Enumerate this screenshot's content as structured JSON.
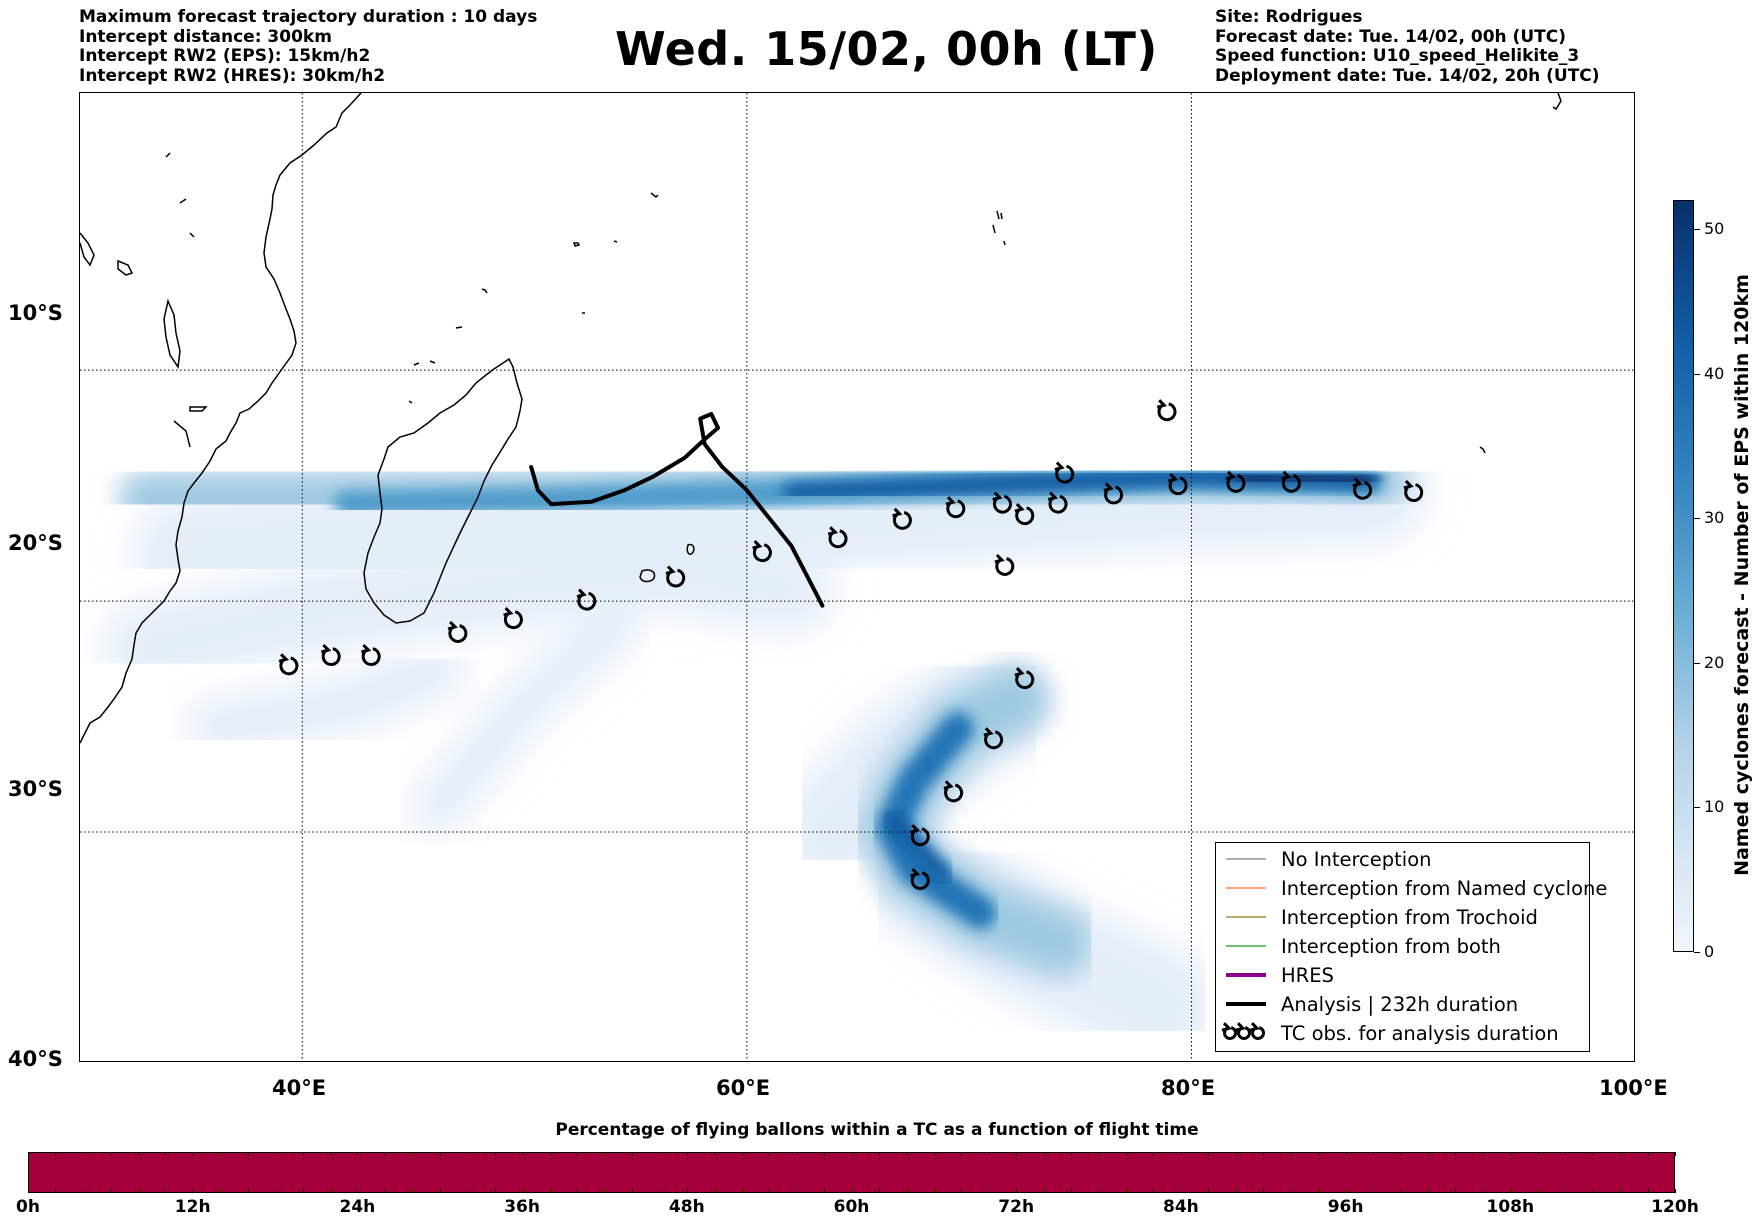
{
  "header": {
    "left_lines": [
      "Maximum forecast trajectory duration : 10 days",
      "Intercept distance: 300km",
      "Intercept RW2 (EPS):  15km/h2",
      "Intercept RW2 (HRES): 30km/h2"
    ],
    "title": "Wed. 15/02, 00h (LT)",
    "right_lines": [
      "Site: Rodrigues",
      "Forecast date: Tue. 14/02, 00h (UTC)",
      "Speed function: U10_speed_Helikite_3",
      "Deployment date: Tue. 14/02, 20h (UTC)"
    ]
  },
  "map": {
    "lon_range": [
      30,
      100
    ],
    "lat_range": [
      -40,
      2
    ],
    "x_ticks": [
      "40°E",
      "60°E",
      "80°E",
      "100°E"
    ],
    "x_tick_values": [
      40,
      60,
      80,
      100
    ],
    "y_ticks": [
      "10°S",
      "20°S",
      "30°S",
      "40°S"
    ],
    "y_tick_values": [
      -10,
      -20,
      -30,
      -40
    ],
    "grid": "dotted",
    "analysis_track": [
      [
        50.3,
        -14.2
      ],
      [
        50.6,
        -15.2
      ],
      [
        51.2,
        -15.8
      ],
      [
        53.0,
        -15.7
      ],
      [
        54.5,
        -15.2
      ],
      [
        55.8,
        -14.6
      ],
      [
        57.2,
        -13.8
      ],
      [
        58.1,
        -13.0
      ],
      [
        58.7,
        -12.5
      ],
      [
        58.4,
        -11.9
      ],
      [
        57.9,
        -12.1
      ],
      [
        58.1,
        -13.2
      ],
      [
        58.9,
        -14.2
      ],
      [
        60.0,
        -15.2
      ],
      [
        61.0,
        -16.4
      ],
      [
        62.0,
        -17.6
      ],
      [
        62.7,
        -18.9
      ],
      [
        63.4,
        -20.2
      ]
    ],
    "tc_obs": [
      [
        39.4,
        -22.8
      ],
      [
        41.3,
        -22.4
      ],
      [
        43.1,
        -22.4
      ],
      [
        47.0,
        -21.4
      ],
      [
        49.5,
        -20.8
      ],
      [
        52.8,
        -20.0
      ],
      [
        56.8,
        -19.0
      ],
      [
        60.7,
        -17.9
      ],
      [
        64.1,
        -17.3
      ],
      [
        67.0,
        -16.5
      ],
      [
        69.4,
        -16.0
      ],
      [
        71.5,
        -15.8
      ],
      [
        72.5,
        -16.3
      ],
      [
        74.0,
        -15.8
      ],
      [
        74.3,
        -14.5
      ],
      [
        76.5,
        -15.4
      ],
      [
        79.4,
        -15.0
      ],
      [
        82.0,
        -14.9
      ],
      [
        84.5,
        -14.9
      ],
      [
        87.7,
        -15.2
      ],
      [
        90.0,
        -15.3
      ],
      [
        78.9,
        -11.8
      ],
      [
        71.6,
        -18.5
      ],
      [
        72.5,
        -23.4
      ],
      [
        71.1,
        -26.0
      ],
      [
        69.3,
        -28.3
      ],
      [
        67.8,
        -30.2
      ],
      [
        67.8,
        -32.1
      ]
    ],
    "density_colors": [
      "#e4eef9",
      "#cadef0",
      "#9ecae1",
      "#4f9bcb",
      "#2474b6",
      "#0b5aa2",
      "#08306b"
    ]
  },
  "legend": {
    "items": [
      {
        "label": "No Interception",
        "color": "#808080",
        "style": "thin"
      },
      {
        "label": "Interception from Named cyclone",
        "color": "#ff6c1a",
        "style": "thin"
      },
      {
        "label": "Interception from Trochoid",
        "color": "#8e7a16",
        "style": "thin"
      },
      {
        "label": "Interception from both",
        "color": "#1a9a1a",
        "style": "thin"
      },
      {
        "label": "HRES",
        "color": "#8b008b",
        "style": "thick"
      },
      {
        "label": "Analysis | 232h duration",
        "color": "#000000",
        "style": "thick"
      },
      {
        "label": "TC obs. for analysis duration",
        "color": "#000000",
        "style": "symbols"
      }
    ]
  },
  "colorbar": {
    "title": "Named cyclones forecast - Number of EPS within 120km",
    "ticks": [
      "0",
      "10",
      "20",
      "30",
      "40",
      "50"
    ],
    "tick_values": [
      0,
      10,
      20,
      30,
      40,
      50
    ],
    "max": 52
  },
  "percentage_bar": {
    "title": "Percentage of flying ballons within a TC as a function of flight time",
    "color": "#a5003c",
    "ticks": [
      "0h",
      "12h",
      "24h",
      "36h",
      "48h",
      "60h",
      "72h",
      "84h",
      "96h",
      "108h",
      "120h"
    ],
    "tick_hours": [
      0,
      12,
      24,
      36,
      48,
      60,
      72,
      84,
      96,
      108,
      120
    ]
  }
}
